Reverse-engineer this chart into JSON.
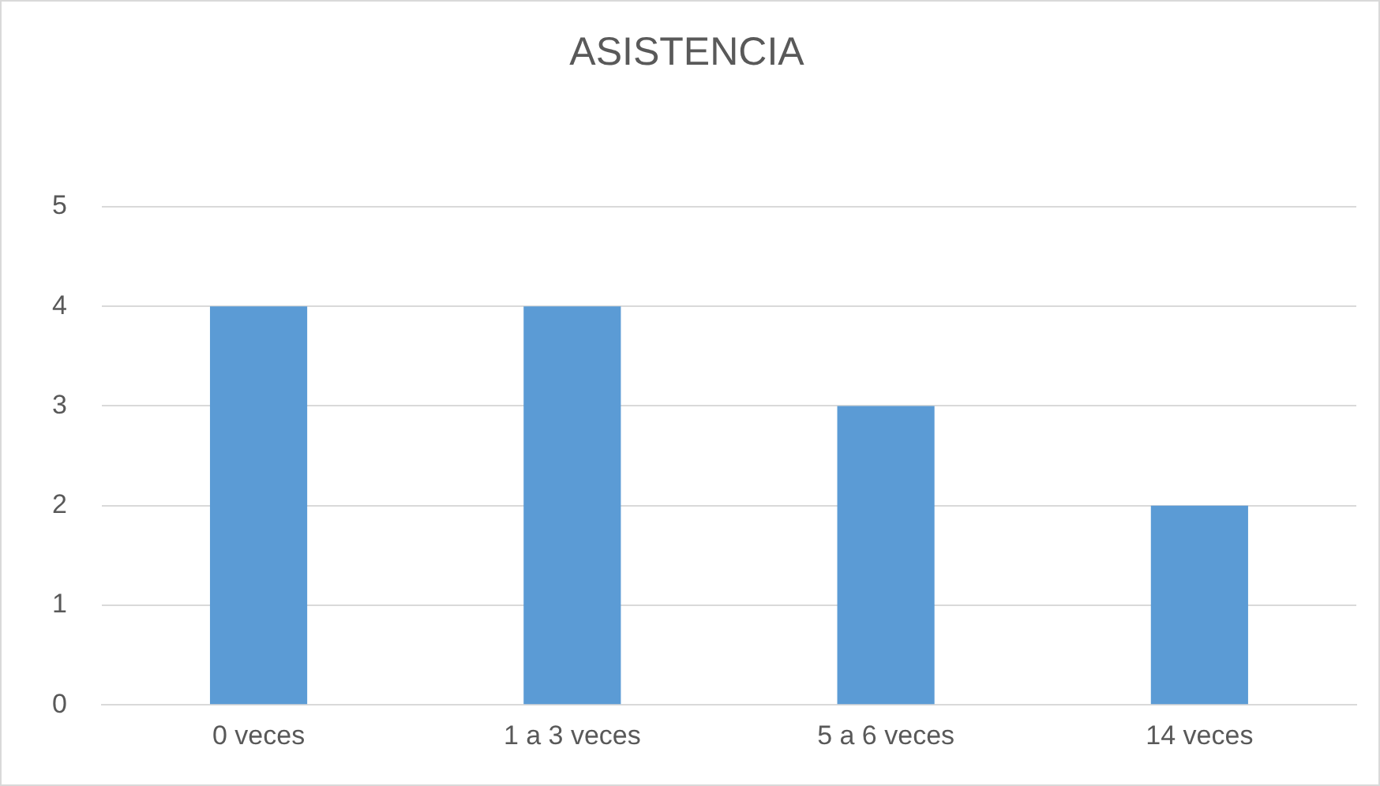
{
  "chart_data": {
    "type": "bar",
    "title": "ASISTENCIA",
    "categories": [
      "0 veces",
      "1 a 3 veces",
      "5 a 6 veces",
      "14 veces"
    ],
    "values": [
      4,
      4,
      3,
      2
    ],
    "color": "#5b9bd5",
    "ylim": [
      0,
      5
    ],
    "yticks": [
      0,
      1,
      2,
      3,
      4,
      5
    ],
    "grid": "y"
  }
}
